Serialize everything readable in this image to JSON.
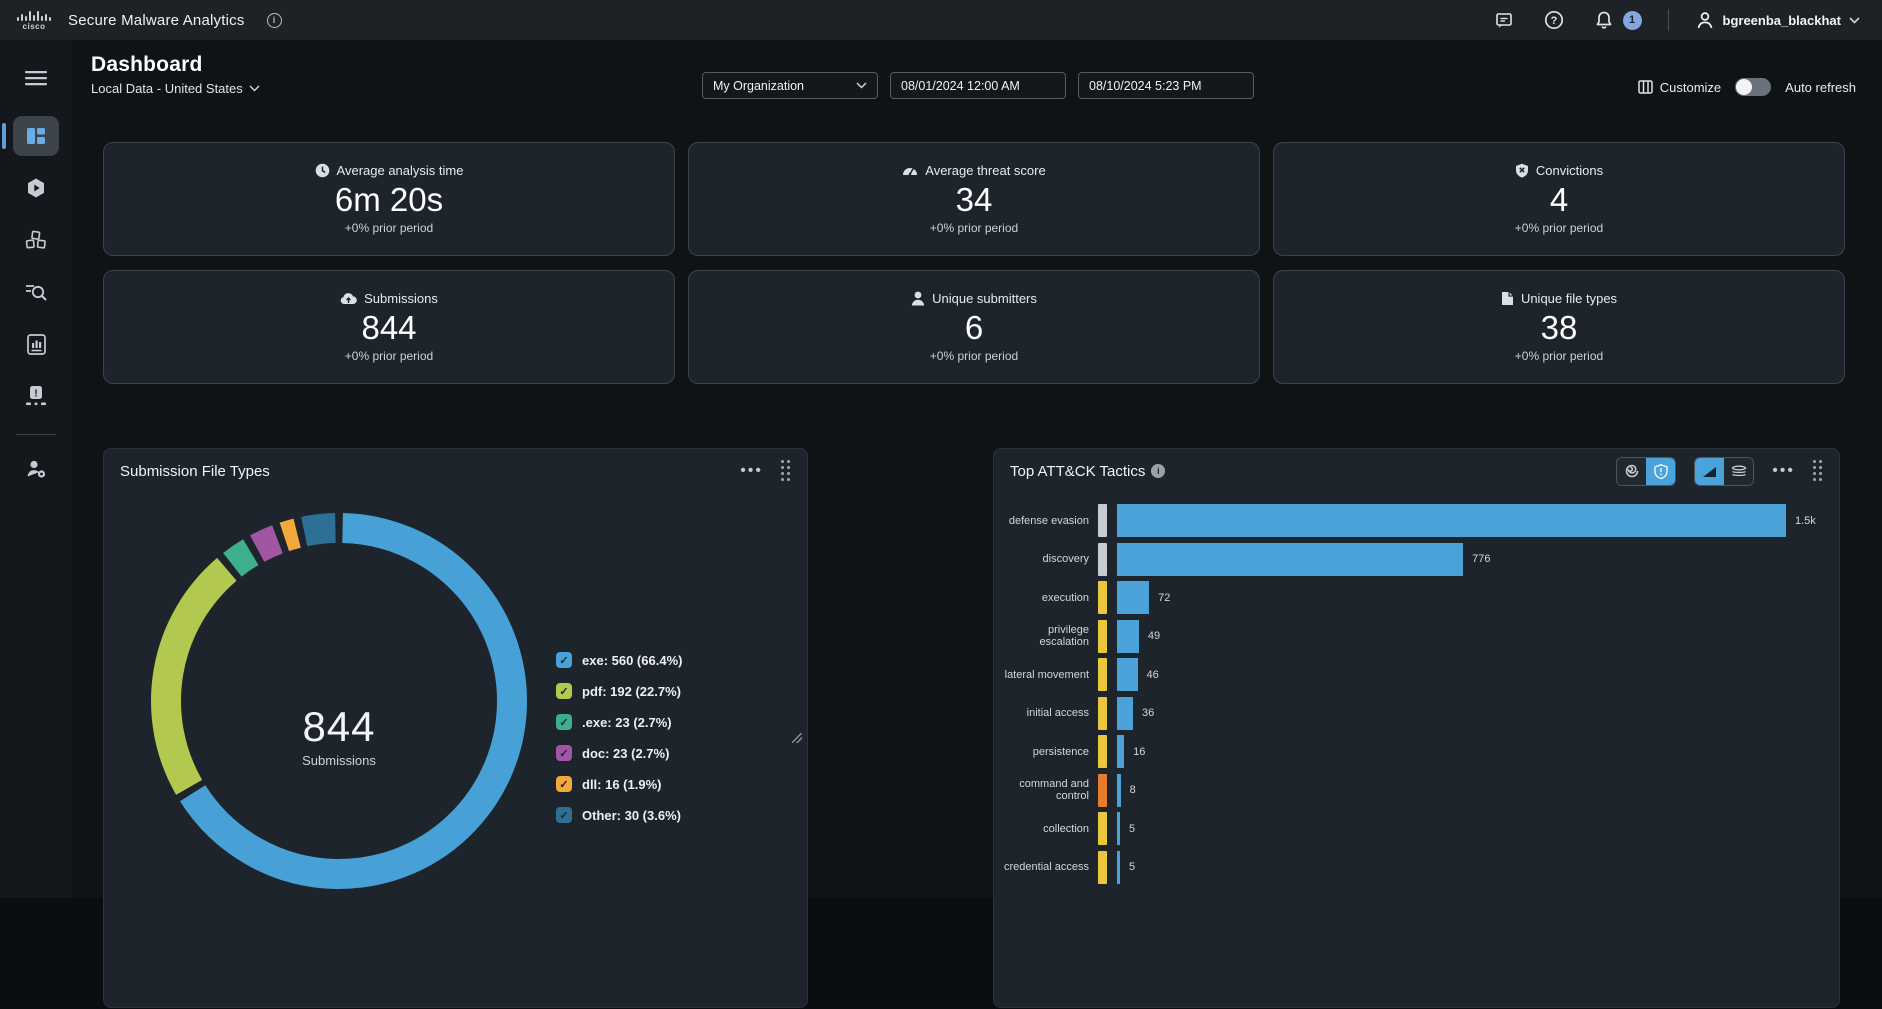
{
  "app": {
    "brand": "cisco",
    "product": "Secure Malware Analytics"
  },
  "topbar": {
    "username": "bgreenba_blackhat",
    "notification_count": "1"
  },
  "header": {
    "title": "Dashboard",
    "scope": "Local Data - United States"
  },
  "filters": {
    "organization": "My Organization",
    "date_from": "08/01/2024 12:00 AM",
    "date_to": "08/10/2024 5:23 PM",
    "customize_label": "Customize",
    "auto_refresh_label": "Auto refresh",
    "auto_refresh_state": "off"
  },
  "stats": [
    {
      "icon": "clock-icon",
      "label": "Average analysis time",
      "value": "6m 20s",
      "delta": "+0% prior period"
    },
    {
      "icon": "gauge-icon",
      "label": "Average threat score",
      "value": "34",
      "delta": "+0% prior period"
    },
    {
      "icon": "shield-x-icon",
      "label": "Convictions",
      "value": "4",
      "delta": "+0% prior period"
    },
    {
      "icon": "upload-cloud-icon",
      "label": "Submissions",
      "value": "844",
      "delta": "+0% prior period"
    },
    {
      "icon": "person-icon",
      "label": "Unique submitters",
      "value": "6",
      "delta": "+0% prior period"
    },
    {
      "icon": "file-icon",
      "label": "Unique file types",
      "value": "38",
      "delta": "+0% prior period"
    }
  ],
  "widgets": {
    "file_types": {
      "title": "Submission File Types"
    },
    "attack_tactics": {
      "title": "Top ATT&CK Tactics"
    }
  },
  "chart_data": [
    {
      "type": "pie",
      "donut": true,
      "title": "Submission File Types",
      "labels": [
        "exe",
        "pdf",
        ".exe",
        "doc",
        "dll",
        "Other"
      ],
      "values": [
        560,
        192,
        23,
        23,
        16,
        30
      ],
      "percents": [
        "66.4%",
        "22.7%",
        "2.7%",
        "2.7%",
        "1.9%",
        "3.6%"
      ],
      "colors": [
        "#47a1d7",
        "#b2c84e",
        "#3fae8d",
        "#a156a4",
        "#f0a93a",
        "#2e6f95"
      ],
      "center": {
        "value": "844",
        "label": "Submissions"
      },
      "legend_position": "right"
    },
    {
      "type": "bar",
      "orientation": "horizontal",
      "title": "Top ATT&CK Tactics",
      "categories": [
        "defense evasion",
        "discovery",
        "execution",
        "privilege escalation",
        "lateral movement",
        "initial access",
        "persistence",
        "command and control",
        "collection",
        "credential access"
      ],
      "values": [
        1500,
        776,
        72,
        49,
        46,
        36,
        16,
        8,
        5,
        5
      ],
      "value_labels": [
        "1.5k",
        "776",
        "72",
        "49",
        "46",
        "36",
        "16",
        "8",
        "5",
        "5"
      ],
      "bar_color": "#49a3d9",
      "severity_colors": [
        "#c6ccd2",
        "#c6ccd2",
        "#ecc63f",
        "#ecc63f",
        "#ecc63f",
        "#ecc63f",
        "#ecc63f",
        "#e87c2e",
        "#ecc63f",
        "#ecc63f"
      ],
      "xlim": [
        0,
        1500
      ],
      "grid": false,
      "legend": false
    }
  ]
}
